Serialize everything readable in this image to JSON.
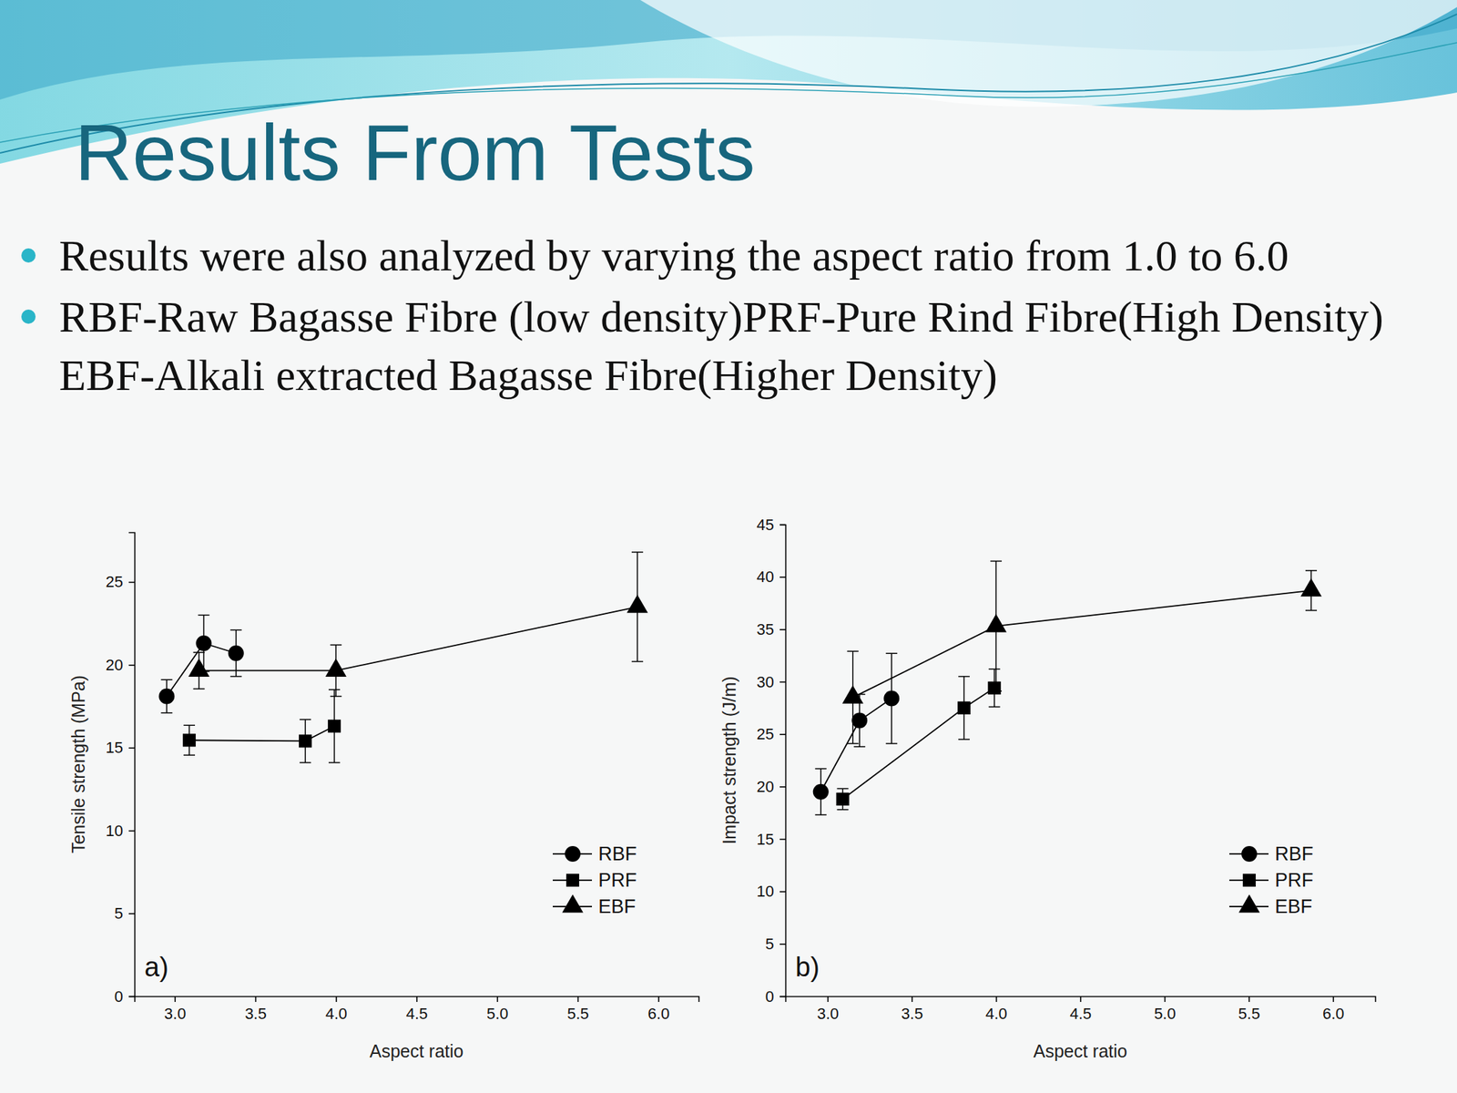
{
  "slide": {
    "title": "Results From Tests",
    "bullets": [
      "Results were also analyzed by varying the aspect ratio from 1.0 to 6.0",
      "RBF-Raw Bagasse Fibre (low density)PRF-Pure Rind Fibre(High Density)  EBF-Alkali extracted Bagasse Fibre(Higher Density)"
    ]
  },
  "chart_data": [
    {
      "type": "line",
      "panel_label": "a)",
      "x_label": "Aspect ratio",
      "y_label": "Tensile strength (MPa)",
      "xlim": [
        2.75,
        6.25
      ],
      "xticks": [
        {
          "value": 3,
          "label": "3.0"
        },
        3.5,
        {
          "value": 4,
          "label": "4.0"
        },
        4.5,
        {
          "value": 5,
          "label": "5.0"
        },
        5.5,
        {
          "value": 6,
          "label": "6.0"
        }
      ],
      "ylim": [
        0,
        28
      ],
      "yticks": [
        0,
        5,
        10,
        15,
        20,
        25
      ],
      "grid": false,
      "legend": "lower right",
      "series": [
        {
          "name": "RBF",
          "color": "#000000",
          "marker": "circle",
          "line_style": "solid",
          "x": [
            2.95,
            3.18,
            3.38
          ],
          "values": [
            18.1,
            21.3,
            20.7
          ],
          "errors": [
            1.0,
            1.7,
            1.4
          ]
        },
        {
          "name": "PRF",
          "color": "#000000",
          "marker": "square",
          "line_style": "solid",
          "x": [
            3.09,
            3.81,
            3.99
          ],
          "values": [
            15.45,
            15.4,
            16.3
          ],
          "errors": [
            0.9,
            1.3,
            2.2
          ]
        },
        {
          "name": "EBF",
          "color": "#000000",
          "marker": "triangle",
          "line_style": "solid",
          "x": [
            3.15,
            4.0,
            5.87
          ],
          "values": [
            19.65,
            19.65,
            23.5
          ],
          "errors": [
            1.1,
            1.55,
            3.3
          ]
        }
      ]
    },
    {
      "type": "line",
      "panel_label": "b)",
      "x_label": "Aspect ratio",
      "y_label": "Impact strength (J/m)",
      "xlim": [
        2.75,
        6.25
      ],
      "xticks": [
        {
          "value": 3,
          "label": "3.0"
        },
        3.5,
        {
          "value": 4,
          "label": "4.0"
        },
        4.5,
        {
          "value": 5,
          "label": "5.0"
        },
        5.5,
        {
          "value": 6,
          "label": "6.0"
        }
      ],
      "ylim": [
        0,
        45
      ],
      "yticks": [
        0,
        5,
        10,
        15,
        20,
        25,
        30,
        35,
        40,
        45
      ],
      "grid": false,
      "legend": "lower right",
      "series": [
        {
          "name": "RBF",
          "color": "#000000",
          "marker": "circle",
          "line_style": "solid",
          "x": [
            2.96,
            3.19,
            3.38
          ],
          "values": [
            19.5,
            26.3,
            28.4
          ],
          "errors": [
            2.2,
            2.5,
            4.3
          ]
        },
        {
          "name": "PRF",
          "color": "#000000",
          "marker": "square",
          "line_style": "solid",
          "x": [
            3.09,
            3.81,
            3.99
          ],
          "values": [
            18.8,
            27.5,
            29.4
          ],
          "errors": [
            1.0,
            3.0,
            1.8
          ]
        },
        {
          "name": "EBF",
          "color": "#000000",
          "marker": "triangle",
          "line_style": "solid",
          "x": [
            3.15,
            4.0,
            5.87
          ],
          "values": [
            28.5,
            35.3,
            38.7
          ],
          "errors": [
            4.4,
            6.2,
            1.9
          ]
        }
      ]
    }
  ]
}
